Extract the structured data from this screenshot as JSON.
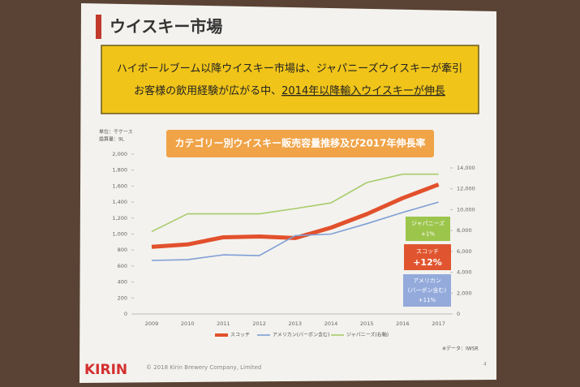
{
  "header": {
    "title": "ウイスキー市場"
  },
  "banner": {
    "line1": "ハイボールブーム以降ウイスキー市場は、ジャパニーズウイスキーが牽引",
    "line2": [
      "お客様の飲用経験が広がる中、",
      "2014年以降輸入ウイスキーが伸長"
    ]
  },
  "chart_data": {
    "type": "line",
    "title": "カテゴリー別ウイスキー販売容量推移及び2017年伸長率",
    "unit_note": [
      "単位：千ケース",
      "換算量：9L"
    ],
    "categories": [
      "2009",
      "2010",
      "2011",
      "2012",
      "2013",
      "2014",
      "2015",
      "2016",
      "2017"
    ],
    "series": [
      {
        "name": "スコッチ",
        "color": "#e2502c",
        "values": [
          840,
          870,
          960,
          970,
          950,
          1080,
          1250,
          1450,
          1620
        ]
      },
      {
        "name": "アメリカン(バーボン含む)",
        "color": "#7f9fd6",
        "values": [
          670,
          680,
          740,
          730,
          980,
          1000,
          1130,
          1270,
          1400
        ]
      },
      {
        "name": "ジャパニーズ(右軸)",
        "color": "#a8cc6a",
        "axis": "y2",
        "values": [
          7900,
          9600,
          9600,
          9600,
          10100,
          10650,
          12600,
          13400,
          13400
        ]
      }
    ],
    "ylim": [
      0,
      2000
    ],
    "yticks": [
      0,
      200,
      400,
      600,
      800,
      {
        "value": 1000,
        "label": "1,000"
      },
      {
        "value": 1200,
        "label": "1,200"
      },
      {
        "value": 1400,
        "label": "1,400"
      },
      {
        "value": 1600,
        "label": "1,600"
      },
      {
        "value": 1800,
        "label": "1,800"
      },
      {
        "value": 2000,
        "label": "2,000"
      }
    ],
    "y2lim": [
      0,
      14000
    ],
    "y2ticks": [
      0,
      {
        "value": 2000,
        "label": "2,000"
      },
      {
        "value": 4000,
        "label": "4,000"
      },
      {
        "value": 6000,
        "label": "6,000"
      },
      {
        "value": 8000,
        "label": "8,000"
      },
      {
        "value": 10000,
        "label": "10,000"
      },
      {
        "value": 12000,
        "label": "12,000"
      },
      {
        "value": 14000,
        "label": "14,000"
      }
    ],
    "annotations": [
      {
        "lines": [
          "ジャパニーズ",
          "+1%"
        ],
        "color": "#9cc54c"
      },
      {
        "lines": [
          "スコッチ",
          "+12%"
        ],
        "color": "#e0552f"
      },
      {
        "lines": [
          "アメリカン",
          "(バーボン含む)",
          "+11%"
        ],
        "color": "#93aadb"
      }
    ],
    "source": "※データ：IWSR"
  },
  "footer": {
    "logo": "KIRIN",
    "copyright": "© 2018 Kirin Brewery Company, Limited",
    "page": "4"
  }
}
